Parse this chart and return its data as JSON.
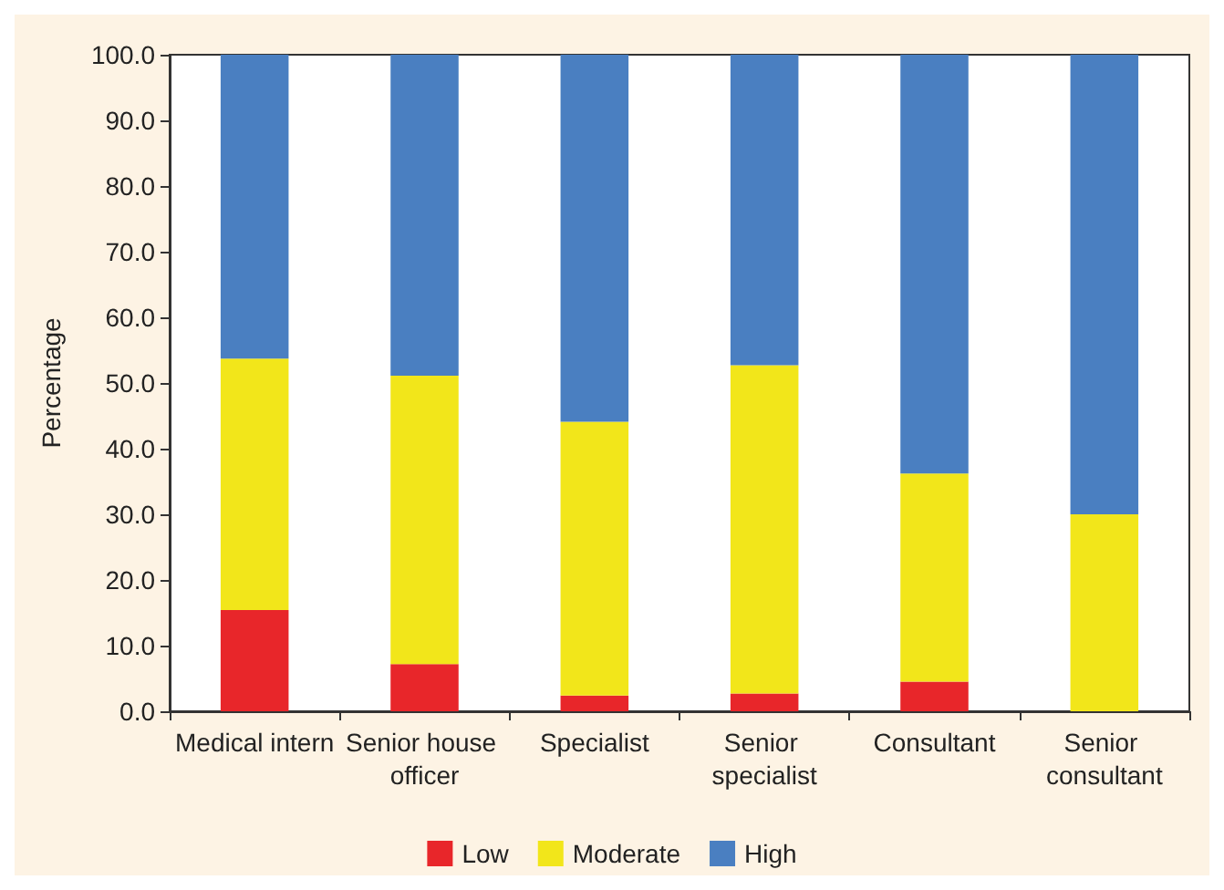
{
  "chart_data": {
    "type": "bar",
    "stacked": true,
    "ylabel": "Percentage",
    "categories": [
      "Medical intern",
      "Senior house officer",
      "Specialist",
      "Senior specialist",
      "Consultant",
      "Senior consultant"
    ],
    "series": [
      {
        "name": "Low",
        "color": "#e8262a",
        "values": [
          15.4,
          7.2,
          2.4,
          2.7,
          4.5,
          0
        ]
      },
      {
        "name": "Moderate",
        "color": "#f2e61a",
        "values": [
          38.3,
          43.9,
          41.7,
          50.0,
          31.7,
          30.0
        ]
      },
      {
        "name": "High",
        "color": "#4a7fc1",
        "values": [
          46.3,
          48.9,
          55.9,
          47.3,
          63.8,
          70.0
        ]
      }
    ],
    "ylim": [
      0,
      100
    ],
    "yticks": [
      {
        "value": 0,
        "label": "0.0"
      },
      {
        "value": 10,
        "label": "10.0"
      },
      {
        "value": 20,
        "label": "20.0"
      },
      {
        "value": 30,
        "label": "30.0"
      },
      {
        "value": 40,
        "label": "40.0"
      },
      {
        "value": 50,
        "label": "50.0"
      },
      {
        "value": 60,
        "label": "60.0"
      },
      {
        "value": 70,
        "label": "70.0"
      },
      {
        "value": 80,
        "label": "80.0"
      },
      {
        "value": 90,
        "label": "90.0"
      },
      {
        "value": 100,
        "label": "100.0"
      }
    ],
    "legend": "bottom",
    "grid": false
  }
}
